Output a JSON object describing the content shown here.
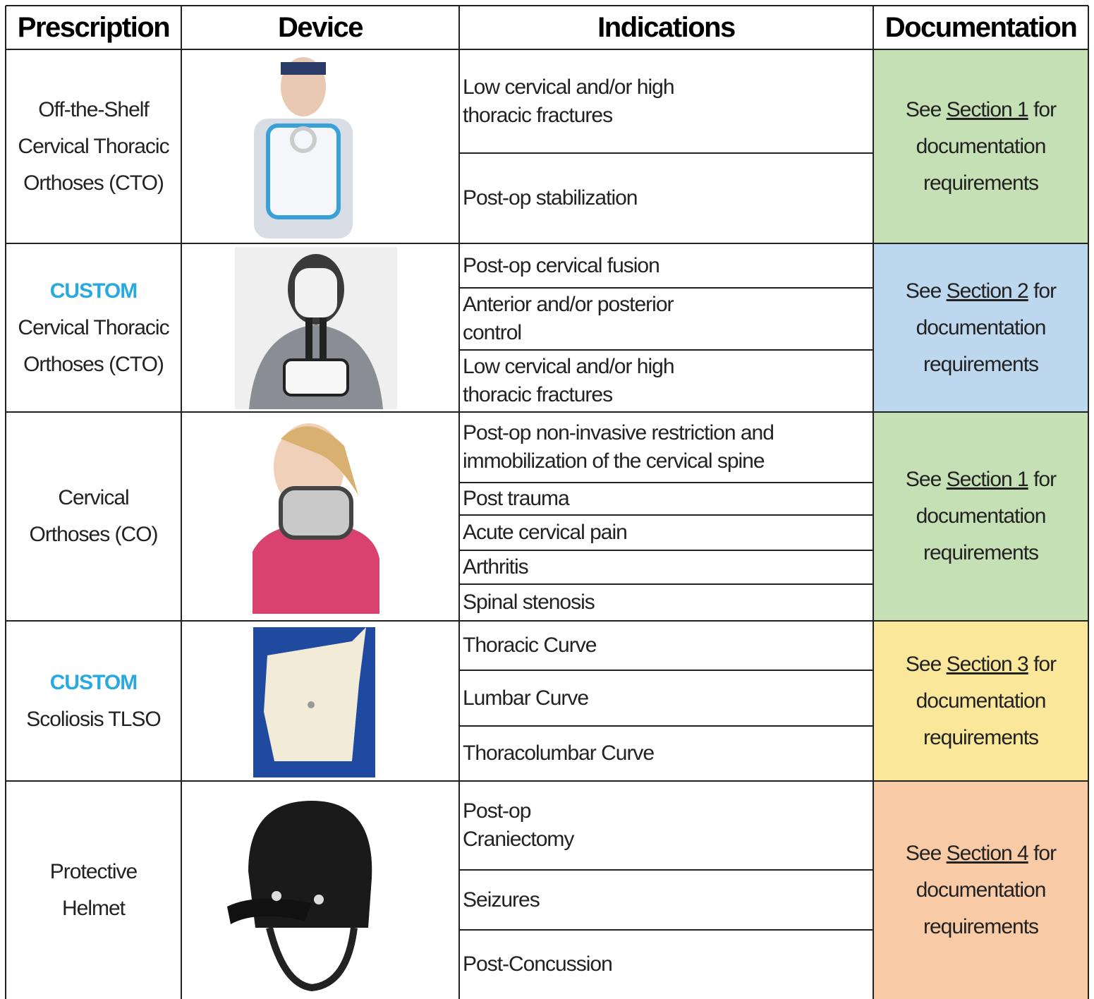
{
  "header": [
    "Prescription",
    "Device",
    "Indications",
    "Documentation"
  ],
  "rows": [
    {
      "custom": null,
      "prescription": [
        "Off-the-Shelf",
        "Cervical Thoracic",
        "Orthoses (CTO)"
      ],
      "indications": [
        [
          "Low cervical and/or high",
          "thoracic fractures"
        ],
        [
          "Post-op stabilization"
        ]
      ],
      "documentation": {
        "prefix": "See",
        "link": "Section 1",
        "suffix": "for",
        "lines": [
          "documentation",
          "requirements"
        ]
      },
      "color": "#c5e0b4"
    },
    {
      "custom": "CUSTOM",
      "prescription": [
        "Cervical Thoracic",
        "Orthoses (CTO)"
      ],
      "indications": [
        [
          "Post-op cervical fusion"
        ],
        [
          "Anterior and/or posterior",
          "control"
        ],
        [
          "Low cervical and/or high",
          "thoracic fractures"
        ]
      ],
      "documentation": {
        "prefix": "See",
        "link": "Section 2",
        "suffix": "for",
        "lines": [
          "documentation",
          "requirements"
        ]
      },
      "color": "#bdd7ee"
    },
    {
      "custom": null,
      "prescription": [
        "Cervical",
        "Orthoses (CO)"
      ],
      "indications": [
        [
          "Post-op non-invasive restriction and",
          "immobilization of the cervical spine"
        ],
        [
          "Post trauma"
        ],
        [
          "Acute cervical pain"
        ],
        [
          "Arthritis"
        ],
        [
          "Spinal stenosis"
        ]
      ],
      "documentation": {
        "prefix": "See",
        "link": "Section 1",
        "suffix": "for",
        "lines": [
          "documentation",
          "requirements"
        ]
      },
      "color": "#c5e0b4"
    },
    {
      "custom": "CUSTOM",
      "prescription": [
        "Scoliosis TLSO"
      ],
      "indications": [
        [
          "Thoracic Curve"
        ],
        [
          "Lumbar Curve"
        ],
        [
          "Thoracolumbar Curve"
        ]
      ],
      "documentation": {
        "prefix": "See",
        "link": "Section 3",
        "suffix": "for",
        "lines": [
          "documentation",
          "requirements"
        ]
      },
      "color": "#fbe79a"
    },
    {
      "custom": null,
      "prescription": [
        "Protective",
        "Helmet"
      ],
      "indications": [
        [
          "Post-op",
          "Craniectomy"
        ],
        [
          "Seizures"
        ],
        [
          "Post-Concussion"
        ]
      ],
      "documentation": {
        "prefix": "See",
        "link": "Section 4",
        "suffix": "for",
        "lines": [
          "documentation",
          "requirements"
        ]
      },
      "color": "#f8cba6"
    }
  ]
}
